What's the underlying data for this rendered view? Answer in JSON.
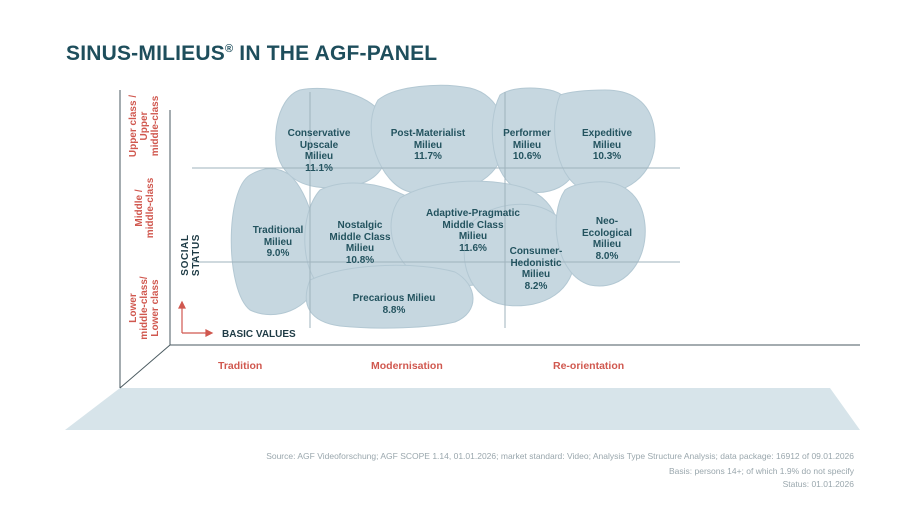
{
  "title": "SINUS-MILIEUS",
  "title_mark": "®",
  "title_suffix": " IN THE AGF-PANEL",
  "axes": {
    "y": "SOCIAL STATUS",
    "x": "BASIC VALUES"
  },
  "class_labels": {
    "upper": "Upper class /\nUpper\nmiddle-class",
    "middle": "Middle /\nmiddle-class",
    "lower": "Lower\nmiddle-class/\nLower class"
  },
  "value_labels": {
    "tradition": "Tradition",
    "modernisation": "Modernisation",
    "reorientation": "Re-orientation"
  },
  "milieus": [
    {
      "id": "conservative-upscale",
      "label": "Conservative\nUpscale\nMilieu\n11.1%",
      "share": 11.1
    },
    {
      "id": "post-materialist",
      "label": "Post-Materialist\nMilieu\n11.7%",
      "share": 11.7
    },
    {
      "id": "performer",
      "label": "Performer\nMilieu\n10.6%",
      "share": 10.6
    },
    {
      "id": "expeditive",
      "label": "Expeditive\nMilieu\n10.3%",
      "share": 10.3
    },
    {
      "id": "traditional",
      "label": "Traditional\nMilieu\n9.0%",
      "share": 9.0
    },
    {
      "id": "nostalgic-middle-class",
      "label": "Nostalgic\nMiddle Class\nMilieu\n10.8%",
      "share": 10.8
    },
    {
      "id": "adaptive-pragmatic",
      "label": "Adaptive-Pragmatic\nMiddle Class\nMilieu\n11.6%",
      "share": 11.6
    },
    {
      "id": "consumer-hedonistic",
      "label": "Consumer-\nHedonistic\nMilieu\n8.2%",
      "share": 8.2
    },
    {
      "id": "neo-ecological",
      "label": "Neo-\nEcological\nMilieu\n8.0%",
      "share": 8.0
    },
    {
      "id": "precarious",
      "label": "Precarious Milieu\n8.8%",
      "share": 8.8
    }
  ],
  "source": {
    "line1": "Source: AGF Videoforschung; AGF SCOPE 1.14, 01.01.2026; market standard: Video; Analysis Type Structure Analysis; data package: 16912 of 09.01.2026",
    "line2": "Basis: persons 14+; of which 1.9% do not specify",
    "line3": "Status: 01.01.2026"
  },
  "colors": {
    "title": "#1e4e5c",
    "blob": "#c6d7e0",
    "blob_stroke": "#b3c8d3",
    "floor": "#d7e4ea",
    "accent": "#d0584f"
  }
}
